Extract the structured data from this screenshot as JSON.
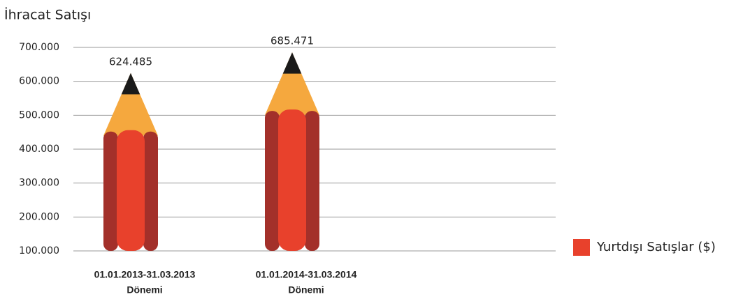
{
  "chart_data": {
    "type": "pencil-bar",
    "title": "İhracat Satışı",
    "categories": [
      [
        "01.01.2013-31.03.2013",
        "Dönemi"
      ],
      [
        "01.01.2014-31.03.2014",
        "Dönemi"
      ]
    ],
    "series": [
      {
        "name": "Yurtdışı Satışlar ($)",
        "color": "#e8412c",
        "values": [
          624485,
          685471
        ],
        "value_labels": [
          "624.485",
          "685.471"
        ]
      }
    ],
    "ylim": [
      100000,
      700000
    ],
    "yticks": [
      {
        "value": 100000,
        "label": "100.000"
      },
      {
        "value": 200000,
        "label": "200.000"
      },
      {
        "value": 300000,
        "label": "300.000"
      },
      {
        "value": 400000,
        "label": "400.000"
      },
      {
        "value": 500000,
        "label": "500.000"
      },
      {
        "value": 600000,
        "label": "600.000"
      },
      {
        "value": 700000,
        "label": "700.000"
      }
    ],
    "grid": true,
    "legend": "right"
  }
}
